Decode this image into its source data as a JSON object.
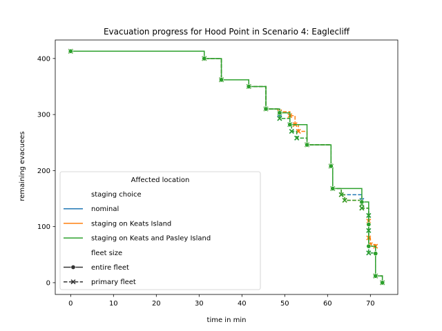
{
  "chart_data": {
    "type": "line",
    "title": "Evacuation progress for Hood Point in Scenario 4: Eaglecliff",
    "xlabel": "time in min",
    "ylabel": "remaining evacuees",
    "xlim": [
      -3.6,
      76.4
    ],
    "ylim": [
      -21,
      433
    ],
    "xticks": [
      0,
      10,
      20,
      30,
      40,
      50,
      60,
      70
    ],
    "yticks": [
      0,
      100,
      200,
      300,
      400
    ],
    "grid": false,
    "legend": {
      "title": "Affected location",
      "placement": "lower-left",
      "hue_header": "staging choice",
      "style_header": "fleet size",
      "style_entries": [
        {
          "label": "entire fleet",
          "marker": "o",
          "dash": "solid"
        },
        {
          "label": "primary fleet",
          "marker": "x",
          "dash": "dashed"
        }
      ]
    },
    "series": [
      {
        "name": "nominal",
        "color": "#1f77b4",
        "fleet": "primary fleet",
        "marker": "x",
        "points": [
          [
            0,
            413
          ],
          [
            31.2,
            400
          ],
          [
            35.2,
            362
          ],
          [
            41.6,
            350
          ],
          [
            45.6,
            310
          ],
          [
            48.8,
            300
          ],
          [
            48.8,
            293
          ],
          [
            51.2,
            282
          ],
          [
            51.6,
            270
          ],
          [
            52.8,
            258
          ],
          [
            55.2,
            246
          ],
          [
            60.8,
            208
          ],
          [
            61.2,
            168
          ],
          [
            63.2,
            157
          ],
          [
            68,
            147
          ],
          [
            68,
            140
          ],
          [
            68,
            133
          ],
          [
            69.6,
            120
          ],
          [
            69.6,
            93
          ],
          [
            69.6,
            53
          ],
          [
            71.2,
            12
          ],
          [
            72.8,
            0
          ]
        ]
      },
      {
        "name": "staging on Keats Island",
        "color": "#ff7f0e",
        "fleet": "primary fleet",
        "marker": "x",
        "points": [
          [
            0,
            413
          ],
          [
            31.2,
            400
          ],
          [
            35.2,
            362
          ],
          [
            41.6,
            350
          ],
          [
            45.6,
            310
          ],
          [
            48.8,
            305
          ],
          [
            51.2,
            298
          ],
          [
            52.4,
            282
          ],
          [
            53.2,
            270
          ],
          [
            55.2,
            246
          ],
          [
            60.8,
            208
          ],
          [
            61.2,
            168
          ],
          [
            63.2,
            157
          ],
          [
            64,
            147
          ],
          [
            68,
            140
          ],
          [
            68,
            133
          ],
          [
            69.6,
            110
          ],
          [
            69.6,
            80
          ],
          [
            70,
            68
          ],
          [
            71.2,
            65
          ],
          [
            71.2,
            12
          ],
          [
            72.8,
            0
          ]
        ]
      },
      {
        "name": "staging on Keats and Pasley Island",
        "color": "#2ca02c",
        "fleet": "primary fleet",
        "marker": "x",
        "points": [
          [
            0,
            413
          ],
          [
            31.2,
            400
          ],
          [
            35.2,
            362
          ],
          [
            41.6,
            350
          ],
          [
            45.6,
            310
          ],
          [
            48.8,
            303
          ],
          [
            48.8,
            293
          ],
          [
            51.2,
            282
          ],
          [
            51.6,
            270
          ],
          [
            52.8,
            258
          ],
          [
            55.2,
            246
          ],
          [
            60.8,
            208
          ],
          [
            61.2,
            168
          ],
          [
            63.2,
            157
          ],
          [
            64,
            147
          ],
          [
            68,
            140
          ],
          [
            68,
            133
          ],
          [
            69.6,
            120
          ],
          [
            69.6,
            93
          ],
          [
            69.6,
            53
          ],
          [
            71.2,
            12
          ],
          [
            72.8,
            0
          ]
        ]
      },
      {
        "name": "staging on Keats and Pasley Island",
        "color": "#2ca02c",
        "fleet": "entire fleet",
        "marker": "o",
        "points": [
          [
            0,
            413
          ],
          [
            31.2,
            400
          ],
          [
            35.2,
            362
          ],
          [
            41.6,
            350
          ],
          [
            45.6,
            310
          ],
          [
            48.8,
            303
          ],
          [
            51.2,
            282
          ],
          [
            55.2,
            246
          ],
          [
            60.8,
            208
          ],
          [
            61.2,
            168
          ],
          [
            68,
            144
          ],
          [
            69.6,
            104
          ],
          [
            69.6,
            65
          ],
          [
            71.2,
            52
          ],
          [
            71.2,
            12
          ],
          [
            72.8,
            0
          ]
        ]
      }
    ]
  }
}
